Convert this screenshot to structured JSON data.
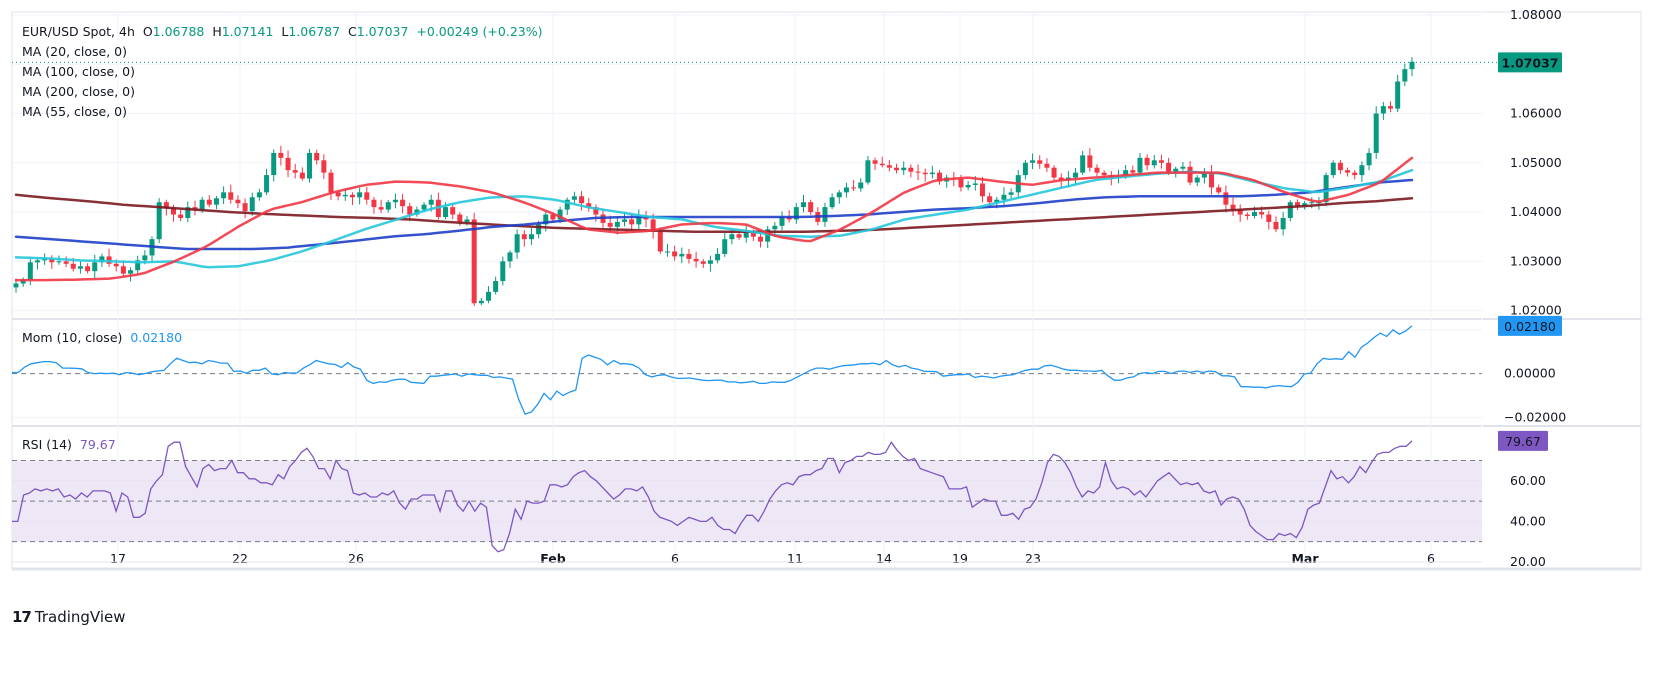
{
  "header": {
    "symbol": "EUR/USD Spot, 4h",
    "open_label": "O",
    "open": "1.06788",
    "high_label": "H",
    "high": "1.07141",
    "low_label": "L",
    "low": "1.06787",
    "close_label": "C",
    "close": "1.07037",
    "change": "+0.00249 (+0.23%)"
  },
  "indicators": {
    "ma20": "MA (20, close, 0)",
    "ma100": "MA (100, close, 0)",
    "ma200": "MA (200, close, 0)",
    "ma55": "MA (55, close, 0)",
    "mom_label": "Mom (10, close)",
    "mom_value": "0.02180",
    "rsi_label": "RSI (14)",
    "rsi_value": "79.67"
  },
  "brand": {
    "logo": "17",
    "name": "TradingView"
  },
  "colors": {
    "up": "#089981",
    "down": "#f23645",
    "ma20": "#f23645",
    "ma55": "#26c6da",
    "ma100": "#1e3fc8",
    "ma200": "#7b1a1f",
    "momentum": "#2196f3",
    "rsi": "#7e57c2",
    "rsi_band": "#ede7f6"
  },
  "chart_data": [
    {
      "type": "candlestick",
      "title": "EUR/USD Spot, 4h",
      "x_ticks": [
        {
          "label": "17",
          "bold": false
        },
        {
          "label": "22",
          "bold": false
        },
        {
          "label": "26",
          "bold": false
        },
        {
          "label": "Feb",
          "bold": true
        },
        {
          "label": "6",
          "bold": false
        },
        {
          "label": "11",
          "bold": false
        },
        {
          "label": "14",
          "bold": false
        },
        {
          "label": "19",
          "bold": false
        },
        {
          "label": "23",
          "bold": false
        },
        {
          "label": "Mar",
          "bold": true
        },
        {
          "label": "6",
          "bold": false
        }
      ],
      "y_ticks": [
        "1.08000",
        "1.06000",
        "1.05000",
        "1.04000",
        "1.03000",
        "1.02000"
      ],
      "ylim": [
        1.0185,
        1.0806
      ],
      "last_price": "1.07037",
      "close_path": [
        1.0255,
        1.0262,
        1.0298,
        1.0302,
        1.0305,
        1.0298,
        1.03,
        1.0295,
        1.0285,
        1.029,
        1.028,
        1.0298,
        1.031,
        1.0295,
        1.029,
        1.0275,
        1.0282,
        1.0302,
        1.0312,
        1.0345,
        1.042,
        1.0408,
        1.0395,
        1.0388,
        1.041,
        1.0405,
        1.0425,
        1.0415,
        1.0428,
        1.044,
        1.0425,
        1.0418,
        1.0402,
        1.043,
        1.044,
        1.0475,
        1.052,
        1.051,
        1.0485,
        1.048,
        1.0468,
        1.052,
        1.0505,
        1.048,
        1.044,
        1.0432,
        1.0435,
        1.043,
        1.044,
        1.0425,
        1.041,
        1.0405,
        1.042,
        1.0425,
        1.0412,
        1.0395,
        1.0405,
        1.0415,
        1.0425,
        1.039,
        1.041,
        1.0395,
        1.038,
        1.0385,
        1.0215,
        1.022,
        1.0238,
        1.026,
        1.03,
        1.0318,
        1.0355,
        1.0345,
        1.0355,
        1.0375,
        1.0395,
        1.0385,
        1.0405,
        1.0425,
        1.0432,
        1.0418,
        1.041,
        1.0395,
        1.0378,
        1.037,
        1.038,
        1.0385,
        1.0375,
        1.0392,
        1.0385,
        1.036,
        1.032,
        1.032,
        1.031,
        1.0315,
        1.0305,
        1.03,
        1.0295,
        1.0302,
        1.0315,
        1.0345,
        1.0355,
        1.0348,
        1.036,
        1.035,
        1.034,
        1.0365,
        1.0372,
        1.039,
        1.0385,
        1.041,
        1.042,
        1.04,
        1.038,
        1.041,
        1.043,
        1.044,
        1.045,
        1.0448,
        1.046,
        1.0505,
        1.0498,
        1.0495,
        1.049,
        1.0485,
        1.049,
        1.0482,
        1.048,
        1.0477,
        1.048,
        1.0462,
        1.047,
        1.0468,
        1.045,
        1.0455,
        1.0458,
        1.0432,
        1.042,
        1.0425,
        1.0435,
        1.044,
        1.0475,
        1.05,
        1.0505,
        1.0498,
        1.049,
        1.047,
        1.0465,
        1.047,
        1.048,
        1.0515,
        1.049,
        1.048,
        1.0475,
        1.047,
        1.0472,
        1.0485,
        1.048,
        1.051,
        1.0495,
        1.0505,
        1.05,
        1.048,
        1.0488,
        1.0492,
        1.046,
        1.047,
        1.048,
        1.045,
        1.044,
        1.0415,
        1.0405,
        1.0395,
        1.0392,
        1.04,
        1.0395,
        1.038,
        1.0365,
        1.0388,
        1.042,
        1.0412,
        1.0418,
        1.042,
        1.042,
        1.0475,
        1.05,
        1.0485,
        1.048,
        1.0475,
        1.0495,
        1.052,
        1.06,
        1.0615,
        1.061,
        1.0665,
        1.069,
        1.0705
      ],
      "ma20": [
        1.0262,
        1.0262,
        1.0263,
        1.0265,
        1.0275,
        1.03,
        1.033,
        1.037,
        1.0405,
        1.042,
        1.044,
        1.0455,
        1.0462,
        1.046,
        1.0452,
        1.044,
        1.042,
        1.0395,
        1.0365,
        1.0358,
        1.0362,
        1.0375,
        1.0378,
        1.0375,
        1.035,
        1.034,
        1.0365,
        1.04,
        1.044,
        1.0465,
        1.047,
        1.0462,
        1.0455,
        1.0465,
        1.047,
        1.0475,
        1.048,
        1.048,
        1.048,
        1.0465,
        1.044,
        1.042,
        1.0435,
        1.046,
        1.051
      ],
      "ma55": [
        1.0308,
        1.0306,
        1.0302,
        1.03,
        1.0298,
        1.03,
        1.0288,
        1.029,
        1.0302,
        1.032,
        1.0342,
        1.0365,
        1.0385,
        1.0405,
        1.042,
        1.043,
        1.0432,
        1.0425,
        1.041,
        1.04,
        1.039,
        1.0385,
        1.037,
        1.0362,
        1.0352,
        1.035,
        1.0352,
        1.0365,
        1.0385,
        1.0395,
        1.0405,
        1.042,
        1.0435,
        1.045,
        1.0465,
        1.0472,
        1.0478,
        1.0482,
        1.0478,
        1.0462,
        1.0448,
        1.044,
        1.045,
        1.0462,
        1.0485
      ],
      "ma100": [
        1.035,
        1.0345,
        1.034,
        1.0335,
        1.033,
        1.0325,
        1.0325,
        1.0325,
        1.0328,
        1.0335,
        1.0342,
        1.035,
        1.0355,
        1.0362,
        1.037,
        1.0375,
        1.0382,
        1.0388,
        1.039,
        1.039,
        1.039,
        1.039,
        1.039,
        1.039,
        1.0392,
        1.0395,
        1.04,
        1.0405,
        1.0408,
        1.0412,
        1.0418,
        1.0425,
        1.043,
        1.0432,
        1.0432,
        1.0432,
        1.0432,
        1.0435,
        1.044,
        1.045,
        1.046,
        1.0465
      ],
      "ma200": [
        1.0435,
        1.0428,
        1.0422,
        1.0415,
        1.041,
        1.0405,
        1.04,
        1.0396,
        1.0393,
        1.039,
        1.0388,
        1.0385,
        1.038,
        1.0376,
        1.0372,
        1.0368,
        1.0366,
        1.0364,
        1.0362,
        1.036,
        1.036,
        1.036,
        1.036,
        1.0362,
        1.0364,
        1.0368,
        1.0372,
        1.0376,
        1.038,
        1.0384,
        1.0388,
        1.0392,
        1.0396,
        1.04,
        1.0404,
        1.0408,
        1.0412,
        1.0418,
        1.0422,
        1.0428
      ]
    },
    {
      "type": "line",
      "title": "Mom (10, close)",
      "y_ticks": [
        "0.00000",
        "-0.02000"
      ],
      "ylim": [
        -0.0235,
        0.0245
      ],
      "last_value": "0.02180",
      "values": [
        0.0005,
        0.0005,
        0.003,
        0.0045,
        0.005,
        0.0055,
        0.0055,
        0.005,
        0.0025,
        0.0025,
        0.0024,
        0.0022,
        0.0005,
        0.0,
        0.0002,
        0.0,
        0.0002,
        -0.0005,
        0.0005,
        0.0002,
        -0.0005,
        0.0,
        0.0008,
        0.0012,
        0.0015,
        0.0045,
        0.007,
        0.006,
        0.005,
        0.0052,
        0.0045,
        0.006,
        0.0055,
        0.0048,
        0.0048,
        0.001,
        0.0012,
        0.0002,
        0.0015,
        0.0015,
        0.0025,
        -0.0002,
        -0.0005,
        0.0005,
        0.0002,
        0.0003,
        0.0025,
        0.004,
        0.006,
        0.0052,
        0.0045,
        0.0042,
        0.0028,
        0.005,
        0.003,
        0.002,
        -0.003,
        -0.0045,
        -0.0038,
        -0.004,
        -0.003,
        -0.0026,
        -0.0025,
        -0.004,
        -0.0042,
        -0.0045,
        -0.0012,
        -0.0012,
        -0.0008,
        -0.0005,
        -0.0002,
        -0.0012,
        -0.0002,
        -0.0005,
        -0.0008,
        -0.0008,
        -0.0018,
        -0.0015,
        -0.002,
        -0.0025,
        -0.012,
        -0.0185,
        -0.0175,
        -0.014,
        -0.009,
        -0.012,
        -0.008,
        -0.01,
        -0.0085,
        -0.0075,
        0.007,
        0.0085,
        0.0075,
        0.0065,
        0.004,
        0.006,
        0.0045,
        0.0045,
        0.004,
        0.0025,
        -0.0005,
        -0.0015,
        -0.0008,
        -0.0005,
        -0.0015,
        -0.0022,
        -0.0022,
        -0.002,
        -0.0025,
        -0.003,
        -0.0032,
        -0.003,
        -0.003,
        -0.0038,
        -0.0038,
        -0.0042,
        -0.004,
        -0.0035,
        -0.0045,
        -0.0045,
        -0.0038,
        -0.004,
        -0.004,
        -0.003,
        -0.0015,
        0.0,
        0.0015,
        0.0025,
        0.0025,
        0.002,
        0.0028,
        0.0035,
        0.0038,
        0.004,
        0.0045,
        0.0045,
        0.0048,
        0.004,
        0.006,
        0.004,
        0.003,
        0.0038,
        0.0025,
        0.002,
        0.001,
        0.001,
        0.0008,
        -0.0012,
        -0.0008,
        -0.0005,
        -0.0005,
        -0.0002,
        -0.0018,
        -0.0012,
        -0.0015,
        -0.002,
        -0.0012,
        -0.0008,
        -0.0005,
        0.0005,
        0.0015,
        0.002,
        0.002,
        0.0035,
        0.0038,
        0.003,
        0.002,
        0.0015,
        0.0015,
        0.0012,
        0.0012,
        0.001,
        0.0015,
        -0.001,
        -0.003,
        -0.003,
        -0.002,
        -0.0015,
        0.0,
        0.0005,
        0.0,
        0.001,
        0.001,
        0.0,
        0.001,
        0.0012,
        0.0005,
        0.0012,
        0.0005,
        0.0012,
        0.0008,
        -0.001,
        -0.001,
        -0.0015,
        -0.006,
        -0.006,
        -0.0062,
        -0.0062,
        -0.0065,
        -0.0058,
        -0.0055,
        -0.0058,
        -0.006,
        -0.004,
        -0.0002,
        0.0002,
        0.0045,
        0.007,
        0.0065,
        0.0068,
        0.0065,
        0.01,
        0.0075,
        0.012,
        0.014,
        0.0165,
        0.0185,
        0.017,
        0.02,
        0.018,
        0.0195,
        0.0218
      ]
    },
    {
      "type": "line",
      "title": "RSI (14)",
      "y_ticks": [
        "60.00",
        "40.00",
        "20.00"
      ],
      "ylim": [
        18.5,
        86.5
      ],
      "levels": [
        70,
        50,
        30
      ],
      "last_value": "79.67",
      "values": [
        40,
        40,
        53,
        54,
        56,
        55,
        56,
        55,
        56,
        52,
        53,
        51,
        54,
        52,
        55,
        55,
        55,
        54,
        45,
        54,
        52,
        42,
        42,
        44,
        56,
        60,
        63,
        77,
        79,
        79,
        67,
        62,
        57,
        66,
        68,
        65,
        66,
        66,
        70,
        64,
        64,
        61,
        61,
        59,
        59,
        58,
        63,
        61,
        67,
        70,
        74,
        76,
        72,
        66,
        66,
        61,
        70,
        66,
        65,
        54,
        53,
        54,
        52,
        52,
        54,
        53,
        55,
        49,
        46,
        51,
        51,
        53,
        53,
        53,
        45,
        55,
        55,
        48,
        45,
        50,
        45,
        49,
        47,
        28,
        25,
        26,
        34,
        46,
        41,
        50,
        49,
        49,
        50,
        58,
        58,
        57,
        58,
        62,
        64,
        65,
        62,
        60,
        57,
        54,
        51,
        53,
        56,
        56,
        55,
        57,
        52,
        45,
        42,
        41,
        40,
        38,
        40,
        42,
        41,
        40,
        40,
        42,
        38,
        36,
        36,
        34,
        39,
        43,
        43,
        40,
        45,
        51,
        55,
        58,
        59,
        58,
        62,
        63,
        63,
        65,
        66,
        71,
        71,
        64,
        69,
        70,
        72,
        72,
        74,
        73,
        73,
        74,
        79,
        75,
        72,
        70,
        71,
        66,
        65,
        64,
        63,
        62,
        56,
        56,
        56,
        57,
        47,
        49,
        51,
        50,
        50,
        43,
        43,
        44,
        41,
        46,
        47,
        51,
        59,
        69,
        73,
        72,
        69,
        64,
        57,
        52,
        55,
        54,
        57,
        69,
        60,
        56,
        57,
        56,
        53,
        55,
        52,
        56,
        60,
        62,
        64,
        61,
        58,
        59,
        58,
        59,
        55,
        54,
        55,
        48,
        51,
        52,
        51,
        46,
        38,
        35,
        33,
        31,
        31,
        34,
        33,
        34,
        32,
        37,
        46,
        48,
        49,
        57,
        65,
        61,
        62,
        59,
        62,
        67,
        64,
        69,
        73,
        74,
        74,
        76,
        77,
        77,
        79.67
      ]
    }
  ]
}
